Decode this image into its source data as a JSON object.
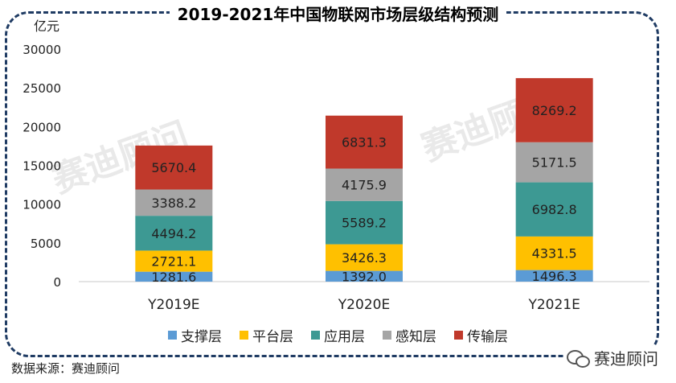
{
  "title": "2019-2021年中国物联网市场层级结构预测",
  "source": "数据来源：赛迪顾问",
  "brand": "赛迪顾问",
  "watermark": "赛迪顾问",
  "colors": {
    "支撑层": "#5b9bd5",
    "平台层": "#ffc000",
    "应用层": "#3d9993",
    "感知层": "#a5a5a5",
    "传输层": "#c0392b"
  },
  "chart_data": {
    "type": "bar",
    "stacked": true,
    "title": "2019-2021年中国物联网市场层级结构预测",
    "ylabel": "亿元",
    "xlabel": "",
    "ylim": [
      0,
      30000
    ],
    "yticks": [
      0,
      5000,
      10000,
      15000,
      20000,
      25000,
      30000
    ],
    "grid": false,
    "legend": "bottom",
    "categories": [
      "Y2019E",
      "Y2020E",
      "Y2021E"
    ],
    "series": [
      {
        "name": "支撑层",
        "values": [
          1281.6,
          1392.0,
          1496.3
        ]
      },
      {
        "name": "平台层",
        "values": [
          2721.1,
          3426.3,
          4331.5
        ]
      },
      {
        "name": "应用层",
        "values": [
          4494.2,
          5589.2,
          6982.8
        ]
      },
      {
        "name": "感知层",
        "values": [
          3388.2,
          4175.9,
          5171.5
        ]
      },
      {
        "name": "传输层",
        "values": [
          5670.4,
          6831.3,
          8269.2
        ]
      }
    ],
    "value_labels": [
      [
        "1281.6",
        "1392.0",
        "1496.3"
      ],
      [
        "2721.1",
        "3426.3",
        "4331.5"
      ],
      [
        "4494.2",
        "5589.2",
        "6982.8"
      ],
      [
        "3388.2",
        "4175.9",
        "5171.5"
      ],
      [
        "5670.4",
        "6831.3",
        "8269.2"
      ]
    ]
  }
}
